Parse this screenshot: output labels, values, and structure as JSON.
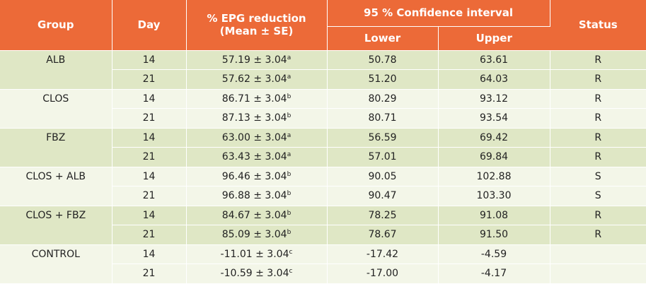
{
  "headers": {
    "group": "Group",
    "day": "Day",
    "epg_line1": "% EPG reduction",
    "epg_line2": "(Mean ± SE)",
    "ci": "95 % Confidence interval",
    "lower": "Lower",
    "upper": "Upper",
    "status": "Status"
  },
  "groups": [
    {
      "name": "ALB",
      "rows": [
        {
          "day": "14",
          "mean": "57.19 ± 3.04",
          "sup": "a",
          "lower": "50.78",
          "upper": "63.61",
          "status": "R"
        },
        {
          "day": "21",
          "mean": "57.62 ± 3.04",
          "sup": "a",
          "lower": "51.20",
          "upper": "64.03",
          "status": "R"
        }
      ]
    },
    {
      "name": "CLOS",
      "rows": [
        {
          "day": "14",
          "mean": "86.71 ± 3.04",
          "sup": "b",
          "lower": "80.29",
          "upper": "93.12",
          "status": "R"
        },
        {
          "day": "21",
          "mean": "87.13 ± 3.04",
          "sup": "b",
          "lower": "80.71",
          "upper": "93.54",
          "status": "R"
        }
      ]
    },
    {
      "name": "FBZ",
      "rows": [
        {
          "day": "14",
          "mean": "63.00 ± 3.04",
          "sup": "a",
          "lower": "56.59",
          "upper": "69.42",
          "status": "R"
        },
        {
          "day": "21",
          "mean": "63.43 ± 3.04",
          "sup": "a",
          "lower": "57.01",
          "upper": "69.84",
          "status": "R"
        }
      ]
    },
    {
      "name": "CLOS + ALB",
      "rows": [
        {
          "day": "14",
          "mean": "96.46 ± 3.04",
          "sup": "b",
          "lower": "90.05",
          "upper": "102.88",
          "status": "S"
        },
        {
          "day": "21",
          "mean": "96.88 ± 3.04",
          "sup": "b",
          "lower": "90.47",
          "upper": "103.30",
          "status": "S"
        }
      ]
    },
    {
      "name": "CLOS + FBZ",
      "rows": [
        {
          "day": "14",
          "mean": "84.67 ± 3.04",
          "sup": "b",
          "lower": "78.25",
          "upper": "91.08",
          "status": "R"
        },
        {
          "day": "21",
          "mean": "85.09 ± 3.04",
          "sup": "b",
          "lower": "78.67",
          "upper": "91.50",
          "status": "R"
        }
      ]
    },
    {
      "name": "CONTROL",
      "rows": [
        {
          "day": "14",
          "mean": "-11.01 ± 3.04",
          "sup": "c",
          "lower": "-17.42",
          "upper": "-4.59",
          "status": ""
        },
        {
          "day": "21",
          "mean": "-10.59 ± 3.04",
          "sup": "c",
          "lower": "-17.00",
          "upper": "-4.17",
          "status": ""
        }
      ]
    }
  ],
  "colors": {
    "header_bg": "#ec6a38",
    "row_dark": "#dfe7c5",
    "row_light": "#f3f6e8"
  }
}
